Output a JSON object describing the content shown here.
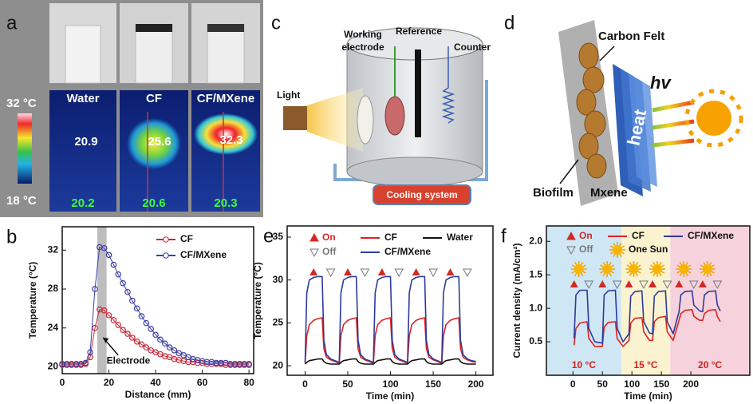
{
  "panels": {
    "a": {
      "label": "a",
      "samples": [
        "Water",
        "CF",
        "CF/MXene"
      ],
      "colorbar": {
        "max": "32 °C",
        "min": "18 °C"
      },
      "top_temps": [
        20.9,
        25.6,
        32.3
      ],
      "bottom_temps": [
        20.2,
        20.6,
        20.3
      ]
    },
    "c": {
      "label": "c",
      "working_electrode": [
        "Working",
        "electrode"
      ],
      "reference": "Reference",
      "counter": "Counter",
      "light": "Light",
      "cooling": "Cooling system"
    },
    "d": {
      "label": "d",
      "carbon_felt": "Carbon Felt",
      "hv": "hv",
      "heat": "heat",
      "biofilm": "Biofilm",
      "mxene": "Mxene"
    }
  },
  "chart_data": [
    {
      "type": "line",
      "label": "b",
      "x_label": "Distance (mm)",
      "y_label": "Temperature (°C)",
      "markers": "circle",
      "annotation": "Electrode",
      "band": [
        15,
        19
      ],
      "x": [
        0,
        2,
        4,
        6,
        8,
        10,
        12,
        14,
        16,
        18,
        20,
        22,
        24,
        26,
        28,
        30,
        32,
        34,
        36,
        38,
        40,
        42,
        44,
        46,
        48,
        50,
        52,
        54,
        56,
        58,
        60,
        62,
        64,
        66,
        68,
        70,
        72,
        74,
        76,
        78,
        80
      ],
      "series": [
        {
          "name": "CF",
          "color": "#c8283a",
          "values": [
            20.2,
            20.2,
            20.2,
            20.2,
            20.2,
            20.3,
            21.0,
            24.0,
            25.9,
            25.8,
            25.3,
            24.8,
            24.3,
            23.8,
            23.4,
            23.0,
            22.6,
            22.3,
            22.0,
            21.7,
            21.5,
            21.3,
            21.1,
            21.0,
            20.8,
            20.7,
            20.6,
            20.5,
            20.5,
            20.4,
            20.4,
            20.3,
            20.3,
            20.3,
            20.3,
            20.2,
            20.2,
            20.2,
            20.2,
            20.2,
            20.2
          ]
        },
        {
          "name": "CF/MXene",
          "color": "#3b3fa8",
          "values": [
            20.3,
            20.3,
            20.3,
            20.3,
            20.3,
            20.4,
            21.5,
            28.0,
            32.3,
            32.2,
            31.5,
            30.5,
            29.5,
            28.6,
            27.7,
            26.8,
            26.0,
            25.2,
            24.5,
            23.9,
            23.3,
            22.8,
            22.4,
            22.0,
            21.7,
            21.4,
            21.2,
            21.0,
            20.8,
            20.7,
            20.6,
            20.5,
            20.5,
            20.4,
            20.4,
            20.4,
            20.3,
            20.3,
            20.3,
            20.3,
            20.3
          ]
        }
      ],
      "xlim": [
        0,
        82
      ],
      "xticks": [
        0,
        20,
        40,
        60,
        80
      ],
      "ylim": [
        19.3,
        34.4
      ],
      "yticks": [
        20,
        24,
        28,
        32
      ]
    },
    {
      "type": "line",
      "label": "e",
      "x_label": "Time (min)",
      "y_label": "Temperature (°C)",
      "x": [
        0,
        2,
        5,
        10,
        15,
        20,
        22,
        25,
        30,
        35,
        40,
        42,
        45,
        50,
        55,
        60,
        62,
        65,
        70,
        75,
        80,
        82,
        85,
        90,
        95,
        100,
        102,
        105,
        110,
        115,
        120,
        122,
        125,
        130,
        135,
        140,
        142,
        145,
        150,
        155,
        160,
        162,
        165,
        170,
        175,
        180,
        182,
        185,
        190,
        195,
        200
      ],
      "series": [
        {
          "name": "CF",
          "color": "#e0231f",
          "values": [
            20.3,
            23.5,
            24.8,
            25.3,
            25.5,
            25.6,
            22.0,
            21.0,
            20.7,
            20.5,
            20.3,
            23.5,
            24.8,
            25.3,
            25.5,
            25.6,
            22.0,
            21.0,
            20.7,
            20.5,
            20.3,
            23.5,
            24.8,
            25.3,
            25.5,
            25.6,
            22.0,
            21.0,
            20.7,
            20.5,
            20.3,
            23.5,
            24.8,
            25.3,
            25.5,
            25.6,
            22.0,
            21.0,
            20.7,
            20.5,
            20.3,
            23.5,
            24.8,
            25.3,
            25.5,
            25.6,
            22.0,
            21.0,
            20.7,
            20.5,
            20.4
          ]
        },
        {
          "name": "CF/MXene",
          "color": "#2c3a9e",
          "values": [
            20.4,
            28.5,
            30.0,
            30.3,
            30.4,
            30.4,
            23.0,
            21.3,
            20.8,
            20.6,
            20.4,
            28.5,
            30.0,
            30.3,
            30.4,
            30.4,
            23.0,
            21.3,
            20.8,
            20.6,
            20.4,
            28.5,
            30.0,
            30.3,
            30.4,
            30.4,
            23.0,
            21.3,
            20.8,
            20.6,
            20.4,
            28.5,
            30.0,
            30.3,
            30.4,
            30.4,
            23.0,
            21.3,
            20.8,
            20.6,
            20.4,
            28.5,
            30.0,
            30.3,
            30.4,
            30.4,
            23.0,
            21.3,
            20.8,
            20.6,
            20.5
          ]
        },
        {
          "name": "Water",
          "color": "#111111",
          "values": [
            20.2,
            20.4,
            20.6,
            20.7,
            20.8,
            20.8,
            20.5,
            20.3,
            20.2,
            20.2,
            20.2,
            20.4,
            20.6,
            20.7,
            20.8,
            20.8,
            20.5,
            20.3,
            20.2,
            20.2,
            20.2,
            20.4,
            20.6,
            20.7,
            20.8,
            20.8,
            20.5,
            20.3,
            20.2,
            20.2,
            20.2,
            20.4,
            20.6,
            20.7,
            20.8,
            20.8,
            20.5,
            20.3,
            20.2,
            20.2,
            20.2,
            20.4,
            20.6,
            20.7,
            20.8,
            20.8,
            20.5,
            20.3,
            20.2,
            20.2,
            20.2
          ]
        }
      ],
      "events": {
        "on": {
          "name": "On",
          "color": "#d12a25",
          "x": [
            10,
            50,
            90,
            130,
            170
          ]
        },
        "off": {
          "name": "Off",
          "color": "#777777",
          "x": [
            30,
            70,
            110,
            150,
            190
          ]
        }
      },
      "xlim": [
        -21,
        220
      ],
      "xticks": [
        0,
        50,
        100,
        150,
        200
      ],
      "ylim": [
        18.9,
        36.3
      ],
      "yticks": [
        20,
        25,
        30,
        35
      ]
    },
    {
      "type": "line",
      "label": "f",
      "x_label": "Time (min)",
      "y_label": "Current density (mA/cm²)",
      "regions": [
        {
          "label": "10 °C",
          "from": -45,
          "to": 82,
          "color": "#cfe6f4"
        },
        {
          "label": "15 °C",
          "from": 82,
          "to": 165,
          "color": "#fbf3cf"
        },
        {
          "label": "20 °C",
          "from": 165,
          "to": 300,
          "color": "#f6d3dc"
        }
      ],
      "x": [
        2,
        5,
        12,
        24,
        27,
        37,
        50,
        53,
        60,
        72,
        75,
        85,
        95,
        98,
        105,
        117,
        120,
        130,
        135,
        138,
        145,
        157,
        160,
        170,
        180,
        183,
        190,
        202,
        205,
        215,
        220,
        223,
        230,
        242,
        245,
        250
      ],
      "series": [
        {
          "name": "CF",
          "color": "#e0231f",
          "values": [
            0.45,
            0.7,
            0.78,
            0.8,
            0.55,
            0.43,
            0.43,
            0.72,
            0.79,
            0.8,
            0.55,
            0.43,
            0.52,
            0.78,
            0.85,
            0.86,
            0.65,
            0.52,
            0.52,
            0.8,
            0.86,
            0.88,
            0.65,
            0.52,
            0.82,
            0.92,
            0.97,
            0.98,
            0.88,
            0.82,
            0.82,
            0.92,
            0.97,
            0.98,
            0.88,
            0.8
          ]
        },
        {
          "name": "CF/MXene",
          "color": "#2c3a9e",
          "values": [
            0.55,
            1.2,
            1.27,
            1.27,
            0.7,
            0.5,
            0.48,
            1.2,
            1.26,
            1.27,
            0.7,
            0.5,
            0.62,
            1.18,
            1.25,
            1.26,
            0.8,
            0.63,
            0.62,
            1.18,
            1.25,
            1.26,
            0.8,
            0.62,
            0.95,
            1.2,
            1.25,
            1.26,
            1.05,
            0.96,
            0.95,
            1.2,
            1.25,
            1.26,
            1.05,
            0.96
          ]
        }
      ],
      "events": {
        "on": {
          "name": "On",
          "color": "#d12a25",
          "x": [
            2,
            50,
            95,
            135,
            180,
            220
          ]
        },
        "off": {
          "name": "Off",
          "color": "#777777",
          "x": [
            27,
            75,
            120,
            160,
            205,
            245
          ]
        },
        "sun": {
          "name": "One Sun"
        }
      },
      "xlim": [
        -45,
        300
      ],
      "xticks": [
        0,
        50,
        100,
        150,
        200
      ],
      "ylim": [
        0,
        2.23
      ],
      "yticks": [
        0.5,
        {
          "value": 1,
          "label": "1.0"
        },
        1.5,
        {
          "value": 2,
          "label": "2.0"
        }
      ]
    }
  ]
}
